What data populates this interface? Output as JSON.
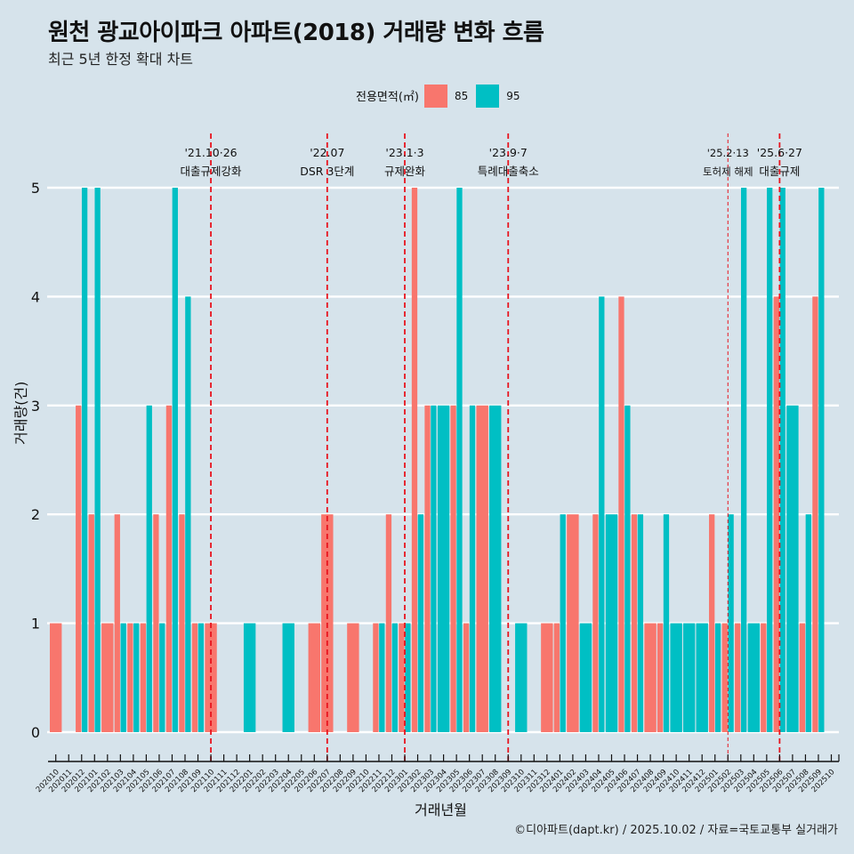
{
  "header": {
    "title": "원천 광교아이파크 아파트(2018) 거래량 변화 흐름",
    "subtitle": "최근 5년 한정 확대 차트"
  },
  "legend": {
    "title": "전용면적(㎡)",
    "items": [
      {
        "label": "85",
        "color": "#F8766D"
      },
      {
        "label": "95",
        "color": "#00BFC4"
      }
    ]
  },
  "caption": "©디아파트(dapt.kr) / 2025.10.02 / 자료=국토교통부 실거래가",
  "chart_data": {
    "type": "bar",
    "title": "원천 광교아이파크 아파트(2018) 거래량 변화 흐름",
    "subtitle": "최근 5년 한정 확대 차트",
    "xlabel": "거래년월",
    "ylabel": "거래량(건)",
    "ylim": [
      0,
      5
    ],
    "yticks": [
      0,
      1,
      2,
      3,
      4,
      5
    ],
    "grid": true,
    "legend_position": "top",
    "bar_mode": "dodge",
    "categories": [
      "202010",
      "202011",
      "202012",
      "202101",
      "202102",
      "202103",
      "202104",
      "202105",
      "202106",
      "202107",
      "202108",
      "202109",
      "202110",
      "202111",
      "202112",
      "202201",
      "202202",
      "202203",
      "202204",
      "202205",
      "202206",
      "202207",
      "202208",
      "202209",
      "202210",
      "202211",
      "202212",
      "202301",
      "202302",
      "202303",
      "202304",
      "202305",
      "202306",
      "202307",
      "202308",
      "202309",
      "202310",
      "202311",
      "202312",
      "202401",
      "202402",
      "202403",
      "202404",
      "202405",
      "202406",
      "202407",
      "202408",
      "202409",
      "202410",
      "202411",
      "202412",
      "202501",
      "202502",
      "202503",
      "202504",
      "202505",
      "202506",
      "202507",
      "202508",
      "202509",
      "202510"
    ],
    "series": [
      {
        "name": "85",
        "color": "#F8766D",
        "values": [
          1,
          0,
          3,
          2,
          1,
          2,
          1,
          1,
          2,
          3,
          2,
          1,
          1,
          0,
          0,
          0,
          0,
          0,
          0,
          0,
          1,
          2,
          0,
          1,
          0,
          1,
          2,
          1,
          5,
          3,
          0,
          3,
          1,
          3,
          0,
          0,
          0,
          0,
          1,
          1,
          2,
          0,
          2,
          0,
          4,
          2,
          1,
          1,
          0,
          0,
          0,
          2,
          1,
          1,
          0,
          1,
          4,
          0,
          1,
          4,
          0
        ]
      },
      {
        "name": "95",
        "color": "#00BFC4",
        "values": [
          0,
          0,
          5,
          5,
          0,
          1,
          1,
          3,
          1,
          5,
          4,
          1,
          0,
          0,
          0,
          1,
          0,
          0,
          1,
          0,
          0,
          0,
          0,
          0,
          0,
          1,
          1,
          1,
          2,
          3,
          3,
          5,
          3,
          0,
          3,
          0,
          1,
          0,
          0,
          2,
          0,
          1,
          4,
          2,
          3,
          2,
          0,
          2,
          1,
          1,
          1,
          1,
          2,
          5,
          1,
          5,
          5,
          3,
          2,
          5,
          0
        ]
      }
    ],
    "annotations": [
      {
        "category": "202110",
        "date": "'21.10·26",
        "label": "대출규제강화",
        "style": "dashed"
      },
      {
        "category": "202207",
        "date": "'22.07",
        "label": "DSR 3단계",
        "style": "dashed"
      },
      {
        "category": "202301",
        "date": "'23.1·3",
        "label": "규제완화",
        "style": "dashed"
      },
      {
        "category": "202309",
        "date": "'23.9·7",
        "label": "특례대출축소",
        "style": "dashed"
      },
      {
        "category": "202502",
        "date": "'25.2·13",
        "label": "토허제 해제",
        "style": "thin-dashed"
      },
      {
        "category": "202506",
        "date": "'25.6·27",
        "label": "대출규제",
        "style": "dashed"
      }
    ]
  }
}
